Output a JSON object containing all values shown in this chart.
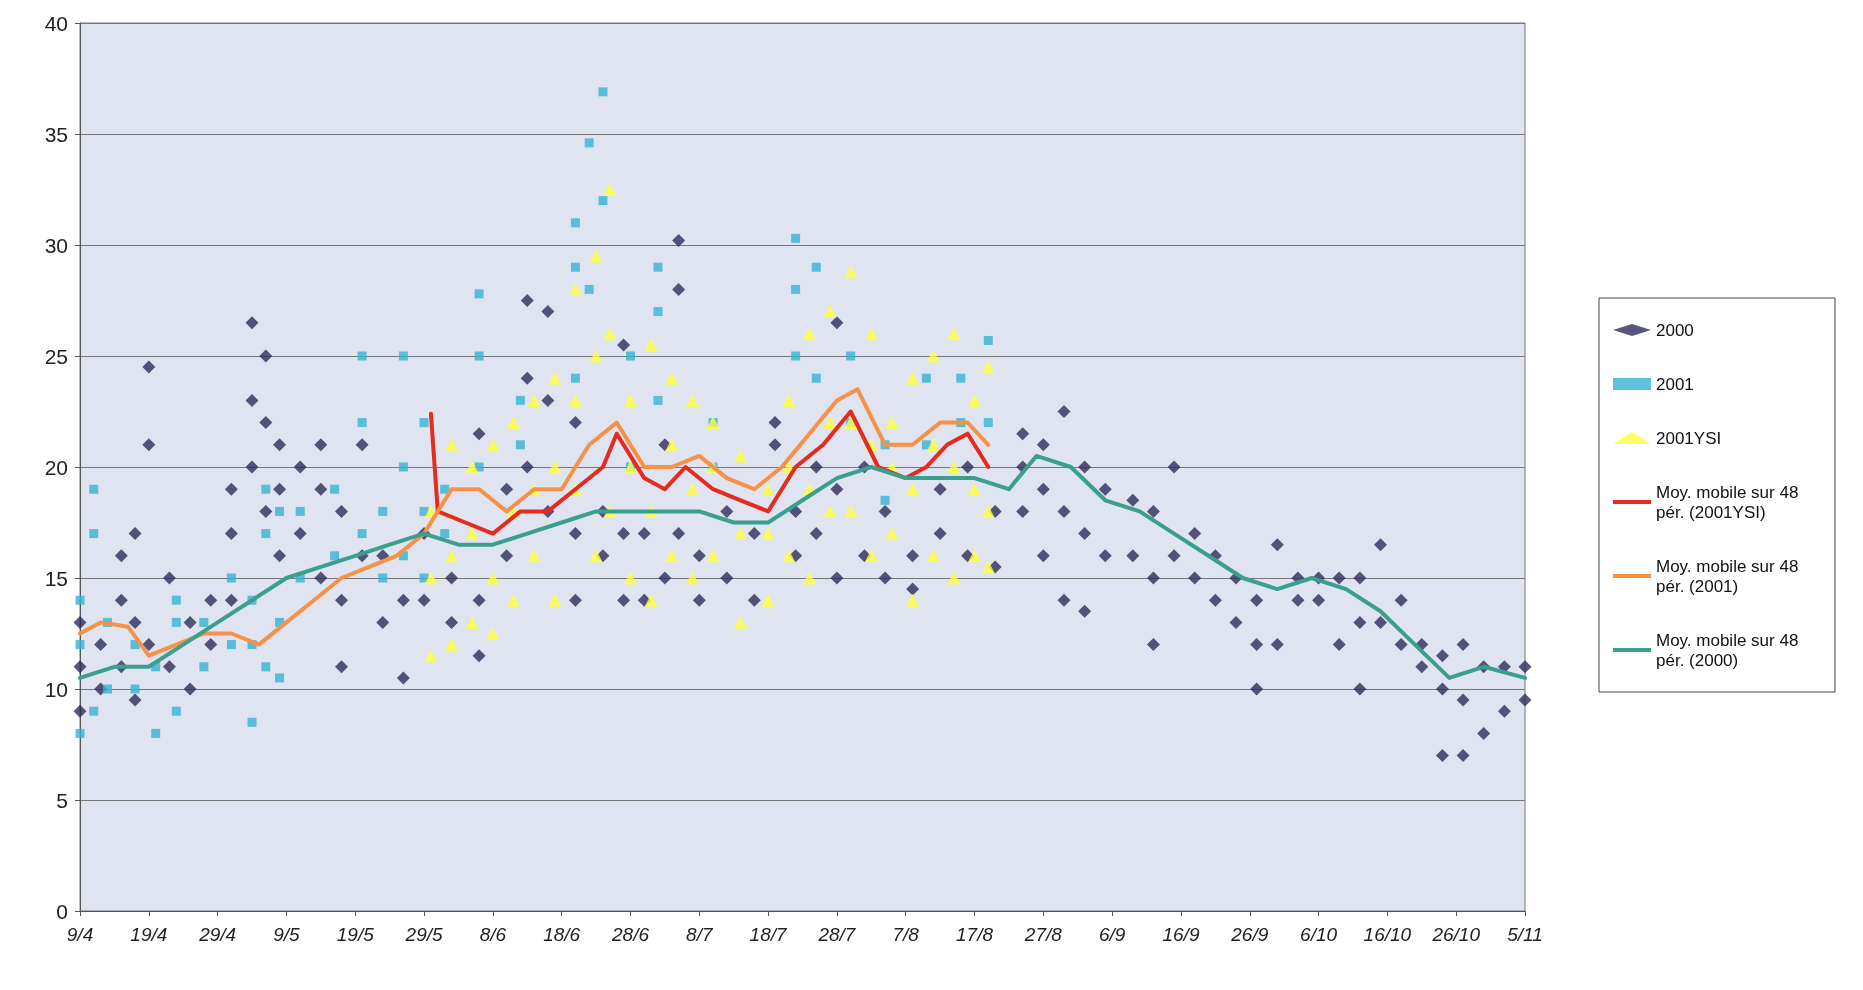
{
  "chart_data": {
    "type": "scatter",
    "grid": "y",
    "legend": "right",
    "xlim": [
      "--04-09",
      "--11-05"
    ],
    "xticks": [
      {
        "value": "--04-09",
        "label": "9/4"
      },
      {
        "value": "--04-19",
        "label": "19/4"
      },
      {
        "value": "--04-29",
        "label": "29/4"
      },
      {
        "value": "--05-09",
        "label": "9/5"
      },
      {
        "value": "--05-19",
        "label": "19/5"
      },
      {
        "value": "--05-29",
        "label": "29/5"
      },
      {
        "value": "--06-08",
        "label": "8/6"
      },
      {
        "value": "--06-18",
        "label": "18/6"
      },
      {
        "value": "--06-28",
        "label": "28/6"
      },
      {
        "value": "--07-08",
        "label": "8/7"
      },
      {
        "value": "--07-18",
        "label": "18/7"
      },
      {
        "value": "--07-28",
        "label": "28/7"
      },
      {
        "value": "--08-07",
        "label": "7/8"
      },
      {
        "value": "--08-17",
        "label": "17/8"
      },
      {
        "value": "--08-27",
        "label": "27/8"
      },
      {
        "value": "--09-06",
        "label": "6/9"
      },
      {
        "value": "--09-16",
        "label": "16/9"
      },
      {
        "value": "--09-26",
        "label": "26/9"
      },
      {
        "value": "--10-06",
        "label": "6/10"
      },
      {
        "value": "--10-16",
        "label": "16/10"
      },
      {
        "value": "--10-26",
        "label": "26/10"
      },
      {
        "value": "--11-05",
        "label": "5/11"
      }
    ],
    "ylim": [
      0,
      40
    ],
    "yticks": [
      0,
      5,
      10,
      15,
      20,
      25,
      30,
      35,
      40
    ],
    "series": [
      {
        "name": "2000",
        "marker": "diamond",
        "color": "#2e2d5a",
        "x": [
          "--04-09",
          "--04-09",
          "--04-09",
          "--04-12",
          "--04-12",
          "--04-15",
          "--04-15",
          "--04-15",
          "--04-17",
          "--04-17",
          "--04-17",
          "--04-19",
          "--04-19",
          "--04-19",
          "--04-22",
          "--04-22",
          "--04-25",
          "--04-25",
          "--04-28",
          "--04-28",
          "--05-01",
          "--05-01",
          "--05-01",
          "--05-04",
          "--05-04",
          "--05-04",
          "--05-06",
          "--05-06",
          "--05-06",
          "--05-08",
          "--05-08",
          "--05-08",
          "--05-11",
          "--05-11",
          "--05-14",
          "--05-14",
          "--05-14",
          "--05-17",
          "--05-17",
          "--05-17",
          "--05-20",
          "--05-20",
          "--05-23",
          "--05-23",
          "--05-26",
          "--05-26",
          "--05-29",
          "--05-29",
          "--06-02",
          "--06-02",
          "--06-06",
          "--06-06",
          "--06-06",
          "--06-10",
          "--06-10",
          "--06-13",
          "--06-13",
          "--06-13",
          "--06-16",
          "--06-16",
          "--06-16",
          "--06-20",
          "--06-20",
          "--06-20",
          "--06-24",
          "--06-24",
          "--06-27",
          "--06-27",
          "--06-27",
          "--06-30",
          "--06-30",
          "--07-03",
          "--07-03",
          "--07-05",
          "--07-05",
          "--07-05",
          "--07-08",
          "--07-08",
          "--07-12",
          "--07-12",
          "--07-16",
          "--07-16",
          "--07-19",
          "--07-19",
          "--07-22",
          "--07-22",
          "--07-25",
          "--07-25",
          "--07-28",
          "--07-28",
          "--07-28",
          "--08-01",
          "--08-01",
          "--08-04",
          "--08-04",
          "--08-08",
          "--08-08",
          "--08-12",
          "--08-12",
          "--08-16",
          "--08-16",
          "--08-20",
          "--08-20",
          "--08-24",
          "--08-24",
          "--08-24",
          "--08-27",
          "--08-27",
          "--08-27",
          "--08-30",
          "--08-30",
          "--08-30",
          "--09-02",
          "--09-02",
          "--09-02",
          "--09-05",
          "--09-05",
          "--09-09",
          "--09-09",
          "--09-12",
          "--09-12",
          "--09-12",
          "--09-15",
          "--09-15",
          "--09-18",
          "--09-18",
          "--09-21",
          "--09-21",
          "--09-24",
          "--09-24",
          "--09-27",
          "--09-27",
          "--09-27",
          "--09-30",
          "--09-30",
          "--10-03",
          "--10-03",
          "--10-06",
          "--10-06",
          "--10-09",
          "--10-09",
          "--10-12",
          "--10-12",
          "--10-12",
          "--10-15",
          "--10-15",
          "--10-18",
          "--10-18",
          "--10-21",
          "--10-21",
          "--10-24",
          "--10-24",
          "--10-24",
          "--10-27",
          "--10-27",
          "--10-27",
          "--10-30",
          "--10-30",
          "--11-02",
          "--11-02",
          "--11-05",
          "--11-05"
        ],
        "values": [
          9,
          11,
          13,
          10,
          12,
          11,
          14,
          16,
          9.5,
          13,
          17,
          21,
          24.5,
          12,
          11,
          15,
          10,
          13,
          14,
          12,
          17,
          19,
          14,
          20,
          23,
          26.5,
          18,
          22,
          25,
          16,
          19,
          21,
          17,
          20,
          15,
          19,
          21,
          11,
          14,
          18,
          16,
          21,
          13,
          16,
          10.5,
          14,
          14,
          17,
          13,
          15,
          11.5,
          14,
          21.5,
          16,
          19,
          20,
          24,
          27.5,
          18,
          23,
          27,
          14,
          17,
          22,
          16,
          18,
          14,
          17,
          25.5,
          14,
          17,
          15,
          21,
          17,
          28,
          30.2,
          14,
          16,
          15,
          18,
          14,
          17,
          21,
          22,
          16,
          18,
          17,
          20,
          15,
          19,
          26.5,
          16,
          20,
          15,
          18,
          14.5,
          16,
          17,
          19,
          16,
          20,
          15.5,
          18,
          18,
          20,
          21.5,
          16,
          19,
          21,
          14,
          18,
          22.5,
          13.5,
          17,
          20,
          16,
          19,
          16,
          18.5,
          12,
          15,
          18,
          16,
          20,
          15,
          17,
          14,
          16,
          13,
          15,
          10,
          12,
          14,
          12,
          16.5,
          14,
          15,
          14,
          15,
          12,
          15,
          10,
          13,
          15,
          13,
          16.5,
          12,
          14,
          11,
          12,
          7,
          10,
          11.5,
          7,
          9.5,
          12,
          8,
          11,
          9,
          11,
          9.5,
          11
        ]
      },
      {
        "name": "2001",
        "marker": "square",
        "color": "#35b3d3",
        "x": [
          "--04-09",
          "--04-09",
          "--04-09",
          "--04-11",
          "--04-11",
          "--04-11",
          "--04-13",
          "--04-13",
          "--04-17",
          "--04-17",
          "--04-20",
          "--04-20",
          "--04-23",
          "--04-23",
          "--04-23",
          "--04-27",
          "--04-27",
          "--05-01",
          "--05-01",
          "--05-04",
          "--05-04",
          "--05-04",
          "--05-06",
          "--05-06",
          "--05-06",
          "--05-08",
          "--05-08",
          "--05-08",
          "--05-11",
          "--05-11",
          "--05-16",
          "--05-16",
          "--05-20",
          "--05-20",
          "--05-20",
          "--05-23",
          "--05-23",
          "--05-26",
          "--05-26",
          "--05-26",
          "--05-29",
          "--05-29",
          "--05-29",
          "--06-01",
          "--06-01",
          "--06-06",
          "--06-06",
          "--06-06",
          "--06-12",
          "--06-12",
          "--06-20",
          "--06-20",
          "--06-20",
          "--06-22",
          "--06-22",
          "--06-24",
          "--06-24",
          "--06-28",
          "--06-28",
          "--07-02",
          "--07-02",
          "--07-02",
          "--07-10",
          "--07-10",
          "--07-22",
          "--07-22",
          "--07-22",
          "--07-25",
          "--07-25",
          "--07-30",
          "--07-30",
          "--08-04",
          "--08-04",
          "--08-10",
          "--08-10",
          "--08-15",
          "--08-15",
          "--08-19",
          "--08-19"
        ],
        "values": [
          8,
          12,
          14,
          9,
          17,
          19,
          10,
          13,
          10,
          12,
          8,
          11,
          9,
          13,
          14,
          11,
          13,
          12,
          15,
          8.5,
          12,
          14,
          11,
          17,
          19,
          10.5,
          13,
          18,
          15,
          18,
          16,
          19,
          17,
          22,
          25,
          15,
          18,
          16,
          20,
          25,
          15,
          18,
          22,
          17,
          19,
          20,
          25,
          27.8,
          21,
          23,
          24,
          29,
          31,
          28,
          34.6,
          32,
          36.9,
          20,
          25,
          27,
          29,
          23,
          20,
          22,
          25,
          28,
          30.3,
          24,
          29,
          22,
          25,
          18.5,
          21,
          21,
          24,
          22,
          24,
          22,
          25.7
        ]
      },
      {
        "name": "2001YSI",
        "marker": "triangle",
        "color": "#ffff3c",
        "x": [
          "--05-30",
          "--05-30",
          "--05-30",
          "--06-02",
          "--06-02",
          "--06-02",
          "--06-05",
          "--06-05",
          "--06-05",
          "--06-08",
          "--06-08",
          "--06-08",
          "--06-11",
          "--06-11",
          "--06-11",
          "--06-14",
          "--06-14",
          "--06-14",
          "--06-17",
          "--06-17",
          "--06-17",
          "--06-20",
          "--06-20",
          "--06-20",
          "--06-23",
          "--06-23",
          "--06-23",
          "--06-25",
          "--06-25",
          "--06-25",
          "--06-28",
          "--06-28",
          "--06-28",
          "--07-01",
          "--07-01",
          "--07-01",
          "--07-04",
          "--07-04",
          "--07-04",
          "--07-07",
          "--07-07",
          "--07-07",
          "--07-10",
          "--07-10",
          "--07-10",
          "--07-14",
          "--07-14",
          "--07-14",
          "--07-18",
          "--07-18",
          "--07-18",
          "--07-21",
          "--07-21",
          "--07-21",
          "--07-24",
          "--07-24",
          "--07-24",
          "--07-27",
          "--07-27",
          "--07-27",
          "--07-30",
          "--07-30",
          "--07-30",
          "--08-02",
          "--08-02",
          "--08-02",
          "--08-05",
          "--08-05",
          "--08-05",
          "--08-08",
          "--08-08",
          "--08-08",
          "--08-11",
          "--08-11",
          "--08-11",
          "--08-14",
          "--08-14",
          "--08-14",
          "--08-17",
          "--08-17",
          "--08-17",
          "--08-19",
          "--08-19",
          "--08-19"
        ],
        "values": [
          11.5,
          15,
          18,
          12,
          16,
          21,
          13,
          17,
          20,
          12.5,
          15,
          21,
          14,
          18,
          22,
          16,
          19,
          23,
          14,
          20,
          24,
          19,
          23,
          28,
          16,
          25,
          29.5,
          18,
          26,
          32.5,
          15,
          20,
          23,
          14,
          18,
          25.5,
          16,
          21,
          24,
          15,
          19,
          23,
          16,
          20,
          22,
          13,
          17,
          20.5,
          14,
          17,
          19,
          16,
          20,
          23,
          15,
          19,
          26,
          18,
          22,
          27,
          18,
          22,
          28.8,
          16,
          21,
          26,
          17,
          20,
          22,
          14,
          19,
          24,
          16,
          21,
          25,
          15,
          20,
          26,
          16,
          19,
          23,
          15.5,
          18,
          24.5
        ]
      },
      {
        "name": "Moy. mobile sur 48 pér. (2001YSI)",
        "type": "line",
        "marker": "none",
        "line_style": "solid",
        "color": "#e52b1f",
        "x": [
          "--05-30",
          "--05-31",
          "--06-04",
          "--06-08",
          "--06-12",
          "--06-16",
          "--06-20",
          "--06-24",
          "--06-26",
          "--06-30",
          "--07-03",
          "--07-06",
          "--07-10",
          "--07-14",
          "--07-18",
          "--07-22",
          "--07-26",
          "--07-30",
          "--08-03",
          "--08-07",
          "--08-10",
          "--08-13",
          "--08-16",
          "--08-19"
        ],
        "values": [
          22.4,
          18,
          17.5,
          17,
          18,
          18,
          19,
          20,
          21.5,
          19.5,
          19,
          20,
          19,
          18.5,
          18,
          20,
          21,
          22.5,
          20,
          19.5,
          20,
          21,
          21.5,
          20
        ]
      },
      {
        "name": "Moy. mobile sur 48 pér. (2001)",
        "type": "line",
        "marker": "none",
        "line_style": "solid",
        "color": "#f79148",
        "x": [
          "--04-09",
          "--04-12",
          "--04-16",
          "--04-19",
          "--04-23",
          "--04-27",
          "--05-01",
          "--05-05",
          "--05-09",
          "--05-13",
          "--05-17",
          "--05-21",
          "--05-25",
          "--05-29",
          "--06-02",
          "--06-06",
          "--06-10",
          "--06-14",
          "--06-18",
          "--06-22",
          "--06-26",
          "--06-30",
          "--07-04",
          "--07-08",
          "--07-12",
          "--07-16",
          "--07-20",
          "--07-24",
          "--07-28",
          "--07-31",
          "--08-04",
          "--08-08",
          "--08-12",
          "--08-16",
          "--08-19"
        ],
        "values": [
          12.5,
          13,
          12.8,
          11.5,
          12,
          12.5,
          12.5,
          12,
          13,
          14,
          15,
          15.5,
          16,
          17,
          19,
          19,
          18,
          19,
          19,
          21,
          22,
          20,
          20,
          20.5,
          19.5,
          19,
          20,
          21.5,
          23,
          23.5,
          21,
          21,
          22,
          22,
          21
        ]
      },
      {
        "name": "Moy. mobile sur 48 pér. (2000)",
        "type": "line",
        "marker": "none",
        "line_style": "solid",
        "color": "#3a9f8c",
        "x": [
          "--04-09",
          "--04-14",
          "--04-19",
          "--04-24",
          "--04-29",
          "--05-04",
          "--05-09",
          "--05-14",
          "--05-19",
          "--05-24",
          "--05-29",
          "--06-03",
          "--06-08",
          "--06-13",
          "--06-18",
          "--06-23",
          "--06-28",
          "--07-03",
          "--07-08",
          "--07-13",
          "--07-18",
          "--07-23",
          "--07-28",
          "--08-02",
          "--08-07",
          "--08-12",
          "--08-17",
          "--08-22",
          "--08-26",
          "--08-31",
          "--09-05",
          "--09-10",
          "--09-15",
          "--09-20",
          "--09-25",
          "--09-30",
          "--10-05",
          "--10-10",
          "--10-15",
          "--10-20",
          "--10-25",
          "--10-30",
          "--11-05"
        ],
        "values": [
          10.5,
          11,
          11,
          12,
          13,
          14,
          15,
          15.5,
          16,
          16.5,
          17,
          16.5,
          16.5,
          17,
          17.5,
          18,
          18,
          18,
          18,
          17.5,
          17.5,
          18.5,
          19.5,
          20,
          19.5,
          19.5,
          19.5,
          19,
          20.5,
          20,
          18.5,
          18,
          17,
          16,
          15,
          14.5,
          15,
          14.5,
          13.5,
          12,
          10.5,
          11,
          10.5
        ]
      }
    ]
  }
}
